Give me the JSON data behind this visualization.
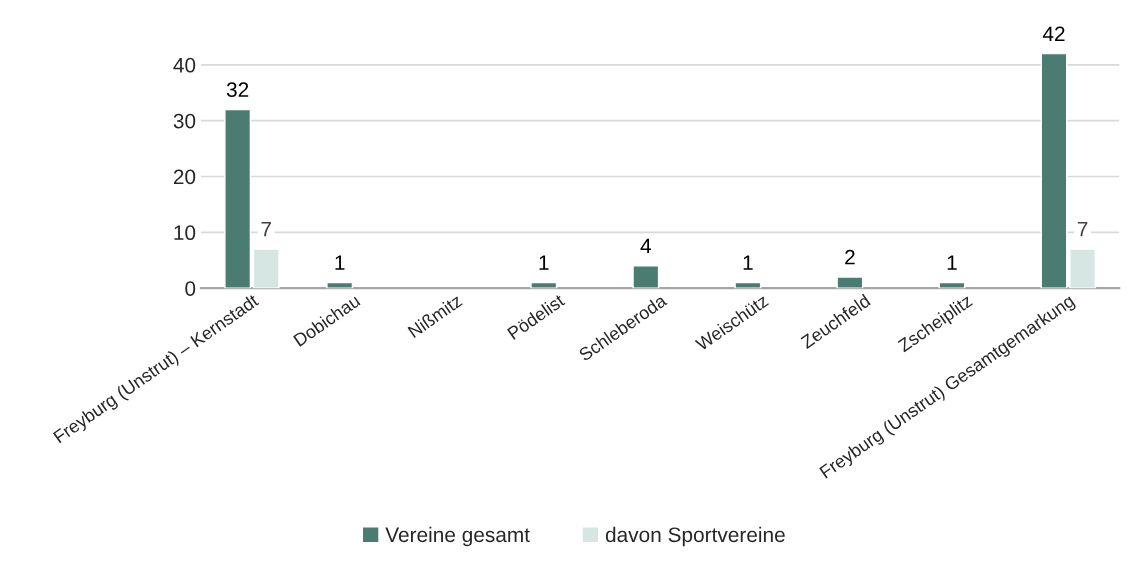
{
  "chart_data": {
    "type": "bar",
    "categories": [
      "Freyburg (Unstrut) – Kernstadt",
      "Dobichau",
      "Nißmitz",
      "Pödelist",
      "Schleberoda",
      "Weischütz",
      "Zeuchfeld",
      "Zscheiplitz",
      "Freyburg (Unstrut) Gesamtgemarkung"
    ],
    "series": [
      {
        "name": "Vereine gesamt",
        "color": "#4a7c72",
        "values": [
          32,
          1,
          null,
          1,
          4,
          1,
          2,
          1,
          42
        ]
      },
      {
        "name": "davon Sportvereine",
        "color": "#d6e6e2",
        "values": [
          7,
          null,
          null,
          null,
          null,
          null,
          null,
          null,
          7
        ]
      }
    ],
    "ylim": [
      0,
      42
    ],
    "yticks": [
      0,
      10,
      20,
      30,
      40
    ],
    "grid": "y",
    "legend": "bottom",
    "data_labels": true
  }
}
